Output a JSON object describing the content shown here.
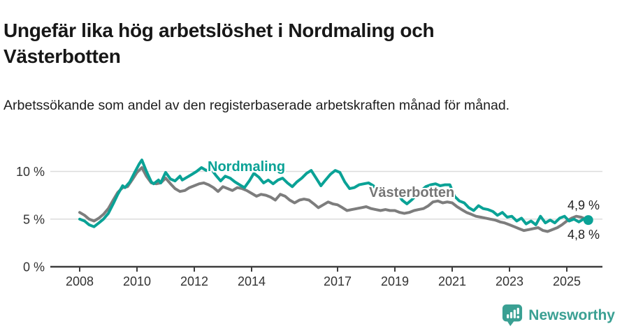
{
  "title": "Ungefär lika hög arbetslöshet i Nordmaling och Västerbotten",
  "subtitle": "Arbetssökande som andel av den registerbaserade arbetskraften månad för månad.",
  "footer": {
    "brand": "Newsworthy"
  },
  "colors": {
    "nordmaling_teal": "#0aa296",
    "vasterbotten_gray": "#7d7d7d",
    "logo_teal": "#3aa093",
    "gridline": "#dcdcdc",
    "axis": "#3d3d3d",
    "tick_text": "#333333"
  },
  "chart_data": {
    "type": "line",
    "title": "Ungefär lika hög arbetslöshet i Nordmaling och Västerbotten",
    "subtitle": "Arbetssökande som andel av den registerbaserade arbetskraften månad för månad.",
    "unit": "%",
    "grid": "horizontal",
    "legend_position": "inline-labels",
    "xlim": [
      2008,
      2025.83
    ],
    "ylim": [
      0,
      12.2
    ],
    "x_ticks": [
      {
        "t": 2008,
        "label": "2008"
      },
      {
        "t": 2010,
        "label": "2010"
      },
      {
        "t": 2012,
        "label": "2012"
      },
      {
        "t": 2014,
        "label": "2014"
      },
      {
        "t": 2017,
        "label": "2017"
      },
      {
        "t": 2019,
        "label": "2019"
      },
      {
        "t": 2021,
        "label": "2021"
      },
      {
        "t": 2023,
        "label": "2023"
      },
      {
        "t": 2025,
        "label": "2025"
      }
    ],
    "y_ticks": [
      {
        "v": 0,
        "label": "0 %"
      },
      {
        "v": 5,
        "label": "5 %"
      },
      {
        "v": 10,
        "label": "10 %"
      }
    ],
    "series": [
      {
        "name": "Nordmaling",
        "color": "#0aa296",
        "end_label": "4,9 %",
        "end_value": 4.9,
        "end_dot": true,
        "points": [
          [
            2008.0,
            5.0
          ],
          [
            2008.17,
            4.8
          ],
          [
            2008.33,
            4.4
          ],
          [
            2008.5,
            4.2
          ],
          [
            2008.67,
            4.6
          ],
          [
            2008.83,
            5.0
          ],
          [
            2009.0,
            5.6
          ],
          [
            2009.17,
            6.6
          ],
          [
            2009.33,
            7.6
          ],
          [
            2009.5,
            8.5
          ],
          [
            2009.58,
            8.3
          ],
          [
            2009.75,
            8.9
          ],
          [
            2009.92,
            9.9
          ],
          [
            2010.08,
            10.8
          ],
          [
            2010.17,
            11.2
          ],
          [
            2010.33,
            10.0
          ],
          [
            2010.5,
            8.9
          ],
          [
            2010.58,
            8.7
          ],
          [
            2010.75,
            9.1
          ],
          [
            2010.83,
            8.8
          ],
          [
            2011.0,
            9.9
          ],
          [
            2011.17,
            9.2
          ],
          [
            2011.33,
            9.0
          ],
          [
            2011.5,
            9.5
          ],
          [
            2011.58,
            9.1
          ],
          [
            2011.75,
            9.4
          ],
          [
            2011.92,
            9.7
          ],
          [
            2012.08,
            10.0
          ],
          [
            2012.25,
            10.4
          ],
          [
            2012.42,
            10.1
          ],
          [
            2012.58,
            10.3
          ],
          [
            2012.75,
            9.6
          ],
          [
            2012.92,
            9.0
          ],
          [
            2013.08,
            9.5
          ],
          [
            2013.25,
            9.3
          ],
          [
            2013.42,
            8.9
          ],
          [
            2013.58,
            8.6
          ],
          [
            2013.75,
            8.3
          ],
          [
            2013.92,
            9.0
          ],
          [
            2014.08,
            9.8
          ],
          [
            2014.25,
            9.4
          ],
          [
            2014.42,
            8.8
          ],
          [
            2014.58,
            9.1
          ],
          [
            2014.75,
            8.7
          ],
          [
            2014.92,
            9.1
          ],
          [
            2015.08,
            9.3
          ],
          [
            2015.25,
            8.8
          ],
          [
            2015.42,
            8.4
          ],
          [
            2015.58,
            8.9
          ],
          [
            2015.75,
            9.3
          ],
          [
            2015.92,
            9.8
          ],
          [
            2016.08,
            10.1
          ],
          [
            2016.25,
            9.3
          ],
          [
            2016.42,
            8.5
          ],
          [
            2016.58,
            9.1
          ],
          [
            2016.75,
            9.7
          ],
          [
            2016.92,
            10.1
          ],
          [
            2017.08,
            9.9
          ],
          [
            2017.25,
            8.9
          ],
          [
            2017.42,
            8.2
          ],
          [
            2017.58,
            8.3
          ],
          [
            2017.75,
            8.6
          ],
          [
            2017.92,
            8.7
          ],
          [
            2018.08,
            8.8
          ],
          [
            2018.25,
            8.5
          ],
          [
            2018.42,
            7.9
          ],
          [
            2018.58,
            7.7
          ],
          [
            2018.75,
            7.4
          ],
          [
            2018.92,
            7.7
          ],
          [
            2019.08,
            7.8
          ],
          [
            2019.25,
            7.0
          ],
          [
            2019.42,
            6.6
          ],
          [
            2019.58,
            7.0
          ],
          [
            2019.75,
            7.5
          ],
          [
            2019.92,
            8.0
          ],
          [
            2020.08,
            8.4
          ],
          [
            2020.25,
            8.6
          ],
          [
            2020.42,
            8.7
          ],
          [
            2020.58,
            8.5
          ],
          [
            2020.75,
            8.6
          ],
          [
            2020.92,
            8.6
          ],
          [
            2021.08,
            7.4
          ],
          [
            2021.25,
            6.9
          ],
          [
            2021.42,
            6.7
          ],
          [
            2021.58,
            6.2
          ],
          [
            2021.75,
            5.9
          ],
          [
            2021.92,
            6.4
          ],
          [
            2022.08,
            6.1
          ],
          [
            2022.25,
            6.0
          ],
          [
            2022.42,
            5.8
          ],
          [
            2022.58,
            5.4
          ],
          [
            2022.75,
            5.7
          ],
          [
            2022.92,
            5.2
          ],
          [
            2023.08,
            5.3
          ],
          [
            2023.25,
            4.8
          ],
          [
            2023.42,
            5.1
          ],
          [
            2023.58,
            4.5
          ],
          [
            2023.75,
            4.8
          ],
          [
            2023.92,
            4.4
          ],
          [
            2024.08,
            5.3
          ],
          [
            2024.25,
            4.6
          ],
          [
            2024.42,
            4.9
          ],
          [
            2024.58,
            4.6
          ],
          [
            2024.75,
            5.1
          ],
          [
            2024.92,
            5.3
          ],
          [
            2025.08,
            4.8
          ],
          [
            2025.25,
            5.0
          ],
          [
            2025.42,
            4.7
          ],
          [
            2025.58,
            5.0
          ],
          [
            2025.75,
            4.9
          ]
        ]
      },
      {
        "name": "Västerbotten",
        "color": "#7d7d7d",
        "end_label": "4,8 %",
        "end_value": 4.8,
        "end_dot": false,
        "points": [
          [
            2008.0,
            5.7
          ],
          [
            2008.17,
            5.4
          ],
          [
            2008.33,
            5.0
          ],
          [
            2008.5,
            4.8
          ],
          [
            2008.67,
            5.1
          ],
          [
            2008.83,
            5.5
          ],
          [
            2009.0,
            6.1
          ],
          [
            2009.17,
            7.0
          ],
          [
            2009.33,
            7.8
          ],
          [
            2009.5,
            8.3
          ],
          [
            2009.67,
            8.4
          ],
          [
            2009.83,
            9.1
          ],
          [
            2010.0,
            9.9
          ],
          [
            2010.17,
            10.4
          ],
          [
            2010.33,
            9.5
          ],
          [
            2010.5,
            8.8
          ],
          [
            2010.67,
            8.7
          ],
          [
            2010.83,
            8.8
          ],
          [
            2011.0,
            9.3
          ],
          [
            2011.17,
            8.7
          ],
          [
            2011.33,
            8.2
          ],
          [
            2011.5,
            7.9
          ],
          [
            2011.67,
            8.0
          ],
          [
            2011.83,
            8.3
          ],
          [
            2012.0,
            8.5
          ],
          [
            2012.17,
            8.7
          ],
          [
            2012.33,
            8.8
          ],
          [
            2012.5,
            8.6
          ],
          [
            2012.67,
            8.3
          ],
          [
            2012.83,
            7.9
          ],
          [
            2013.0,
            8.4
          ],
          [
            2013.17,
            8.2
          ],
          [
            2013.33,
            8.0
          ],
          [
            2013.5,
            8.3
          ],
          [
            2013.67,
            8.2
          ],
          [
            2013.83,
            8.0
          ],
          [
            2014.0,
            7.7
          ],
          [
            2014.17,
            7.4
          ],
          [
            2014.33,
            7.6
          ],
          [
            2014.5,
            7.5
          ],
          [
            2014.67,
            7.3
          ],
          [
            2014.83,
            7.0
          ],
          [
            2015.0,
            7.6
          ],
          [
            2015.17,
            7.4
          ],
          [
            2015.33,
            7.0
          ],
          [
            2015.5,
            6.7
          ],
          [
            2015.67,
            7.0
          ],
          [
            2015.83,
            7.1
          ],
          [
            2016.0,
            7.0
          ],
          [
            2016.17,
            6.6
          ],
          [
            2016.33,
            6.2
          ],
          [
            2016.5,
            6.5
          ],
          [
            2016.67,
            6.8
          ],
          [
            2016.83,
            6.6
          ],
          [
            2017.0,
            6.5
          ],
          [
            2017.17,
            6.2
          ],
          [
            2017.33,
            5.9
          ],
          [
            2017.5,
            6.0
          ],
          [
            2017.67,
            6.1
          ],
          [
            2017.83,
            6.2
          ],
          [
            2018.0,
            6.3
          ],
          [
            2018.17,
            6.1
          ],
          [
            2018.33,
            6.0
          ],
          [
            2018.5,
            5.9
          ],
          [
            2018.67,
            6.0
          ],
          [
            2018.83,
            5.9
          ],
          [
            2019.0,
            5.9
          ],
          [
            2019.17,
            5.7
          ],
          [
            2019.33,
            5.6
          ],
          [
            2019.5,
            5.7
          ],
          [
            2019.67,
            5.9
          ],
          [
            2019.83,
            6.0
          ],
          [
            2020.0,
            6.1
          ],
          [
            2020.17,
            6.4
          ],
          [
            2020.33,
            6.8
          ],
          [
            2020.5,
            6.9
          ],
          [
            2020.67,
            6.7
          ],
          [
            2020.83,
            6.8
          ],
          [
            2021.0,
            6.7
          ],
          [
            2021.17,
            6.3
          ],
          [
            2021.33,
            6.0
          ],
          [
            2021.5,
            5.7
          ],
          [
            2021.67,
            5.5
          ],
          [
            2021.83,
            5.3
          ],
          [
            2022.0,
            5.2
          ],
          [
            2022.17,
            5.1
          ],
          [
            2022.33,
            5.0
          ],
          [
            2022.5,
            4.9
          ],
          [
            2022.67,
            4.7
          ],
          [
            2022.83,
            4.6
          ],
          [
            2023.0,
            4.4
          ],
          [
            2023.17,
            4.2
          ],
          [
            2023.33,
            4.0
          ],
          [
            2023.5,
            3.8
          ],
          [
            2023.67,
            3.9
          ],
          [
            2023.83,
            4.0
          ],
          [
            2024.0,
            4.1
          ],
          [
            2024.17,
            3.8
          ],
          [
            2024.33,
            3.7
          ],
          [
            2024.5,
            3.9
          ],
          [
            2024.67,
            4.1
          ],
          [
            2024.83,
            4.4
          ],
          [
            2025.0,
            4.8
          ],
          [
            2025.17,
            5.1
          ],
          [
            2025.33,
            5.3
          ],
          [
            2025.5,
            5.2
          ],
          [
            2025.67,
            5.0
          ],
          [
            2025.75,
            4.8
          ]
        ]
      }
    ]
  }
}
